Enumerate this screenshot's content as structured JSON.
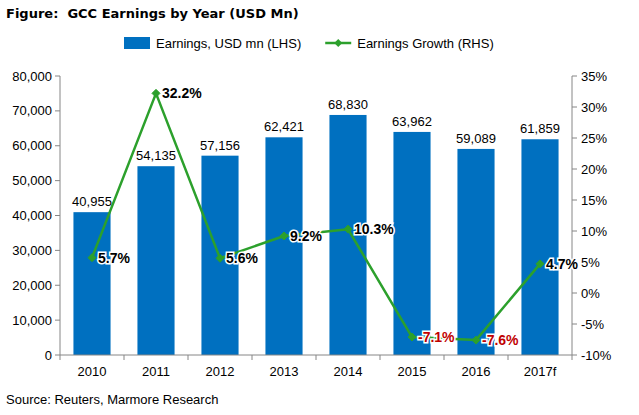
{
  "chart_data": {
    "type": "bar",
    "title": "Figure:  GCC Earnings by Year (USD Mn)",
    "annotations": [
      "Source: Reuters, Marmore Research"
    ],
    "categories": [
      "2010",
      "2011",
      "2012",
      "2013",
      "2014",
      "2015",
      "2016",
      "2017f"
    ],
    "series": [
      {
        "name": "Earnings, USD mn (LHS)",
        "type": "bar",
        "color": "#0070c0",
        "axis": "y",
        "values": [
          40955,
          54135,
          57156,
          62421,
          68830,
          63962,
          59089,
          61859
        ],
        "value_labels": [
          "40,955",
          "54,135",
          "57,156",
          "62,421",
          "68,830",
          "63,962",
          "59,089",
          "61,859"
        ]
      },
      {
        "name": "Earnings Growth (RHS)",
        "type": "line",
        "color": "#2ca02c",
        "axis": "y2",
        "marker": "diamond",
        "values": [
          5.7,
          32.2,
          5.6,
          9.2,
          10.3,
          -7.1,
          -7.6,
          4.7
        ],
        "value_labels": [
          "5.7%",
          "32.2%",
          "5.6%",
          "9.2%",
          "10.3%",
          "-7.1%",
          "-7.6%",
          "4.7%"
        ]
      }
    ],
    "ylim": [
      0,
      80000
    ],
    "yticks": [
      0,
      {
        "value": 10000,
        "label": "10,000"
      },
      {
        "value": 20000,
        "label": "20,000"
      },
      {
        "value": 30000,
        "label": "30,000"
      },
      {
        "value": 40000,
        "label": "40,000"
      },
      {
        "value": 50000,
        "label": "50,000"
      },
      {
        "value": 60000,
        "label": "60,000"
      },
      {
        "value": 70000,
        "label": "70,000"
      },
      {
        "value": 80000,
        "label": "80,000"
      }
    ],
    "y2lim": [
      -10,
      35
    ],
    "y2ticks": [
      {
        "value": -10,
        "label": "-10%"
      },
      {
        "value": -5,
        "label": "-5%"
      },
      {
        "value": 0,
        "label": "0%"
      },
      {
        "value": 5,
        "label": "5%"
      },
      {
        "value": 10,
        "label": "10%"
      },
      {
        "value": 15,
        "label": "15%"
      },
      {
        "value": 20,
        "label": "20%"
      },
      {
        "value": 25,
        "label": "25%"
      },
      {
        "value": 30,
        "label": "30%"
      },
      {
        "value": 35,
        "label": "35%"
      }
    ],
    "grid": false,
    "legend": "top",
    "data_labels": true
  }
}
